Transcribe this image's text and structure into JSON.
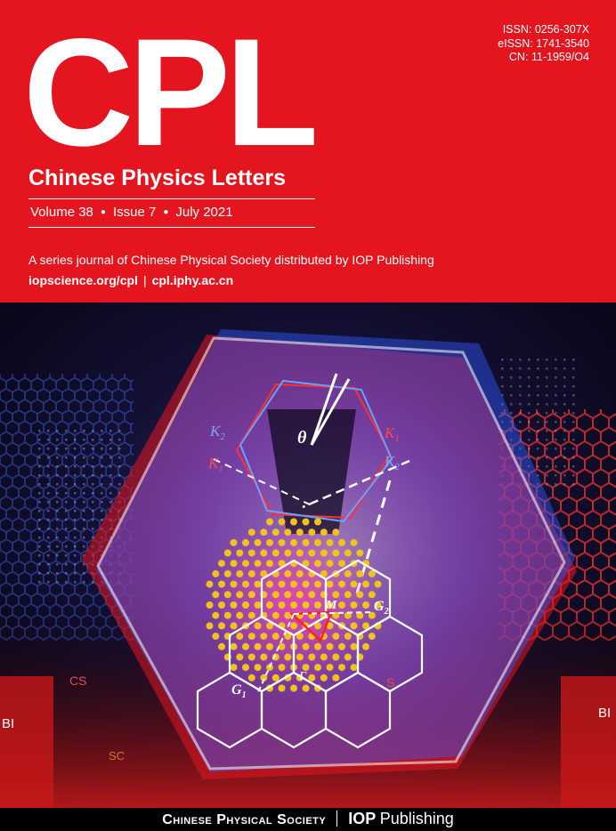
{
  "masthead": {
    "logo": "CPL",
    "title": "Chinese Physics Letters",
    "volume": "Volume 38",
    "issue": "Issue 7",
    "date": "July 2021",
    "tagline": "A series journal of Chinese Physical Society distributed by IOP Publishing",
    "link_iop": "iopscience.org/cpl",
    "link_iphy": "cpl.iphy.ac.cn"
  },
  "identifiers": {
    "issn": "ISSN: 0256-307X",
    "eissn": "eISSN: 1741-3540",
    "cn": "CN: 11-1959/O4"
  },
  "artwork": {
    "theta": "θ",
    "k2_left": "K",
    "k2_left_sub": "2",
    "k1_left": "K",
    "k1_left_sub": "1",
    "k1_right": "K",
    "k1_right_sub": "1",
    "k2_right": "K",
    "k2_right_sub": "2",
    "g1": "G",
    "g1_sub": "1",
    "g2": "G",
    "g2_sub": "2",
    "m_label": "M",
    "gamma_label": "Γ",
    "cs_label": "CS",
    "s_label": "S",
    "sc_label": "SC",
    "bi_left": "BI",
    "bi_right": "BI",
    "colors": {
      "header_red": "#e4151f",
      "lattice_yellow": "#f2c21a",
      "twist_red": "#e02020",
      "twist_blue": "#3a70ff"
    }
  },
  "footer": {
    "society": "Chinese Physical Society",
    "iop": "IOP",
    "publishing": "Publishing"
  }
}
